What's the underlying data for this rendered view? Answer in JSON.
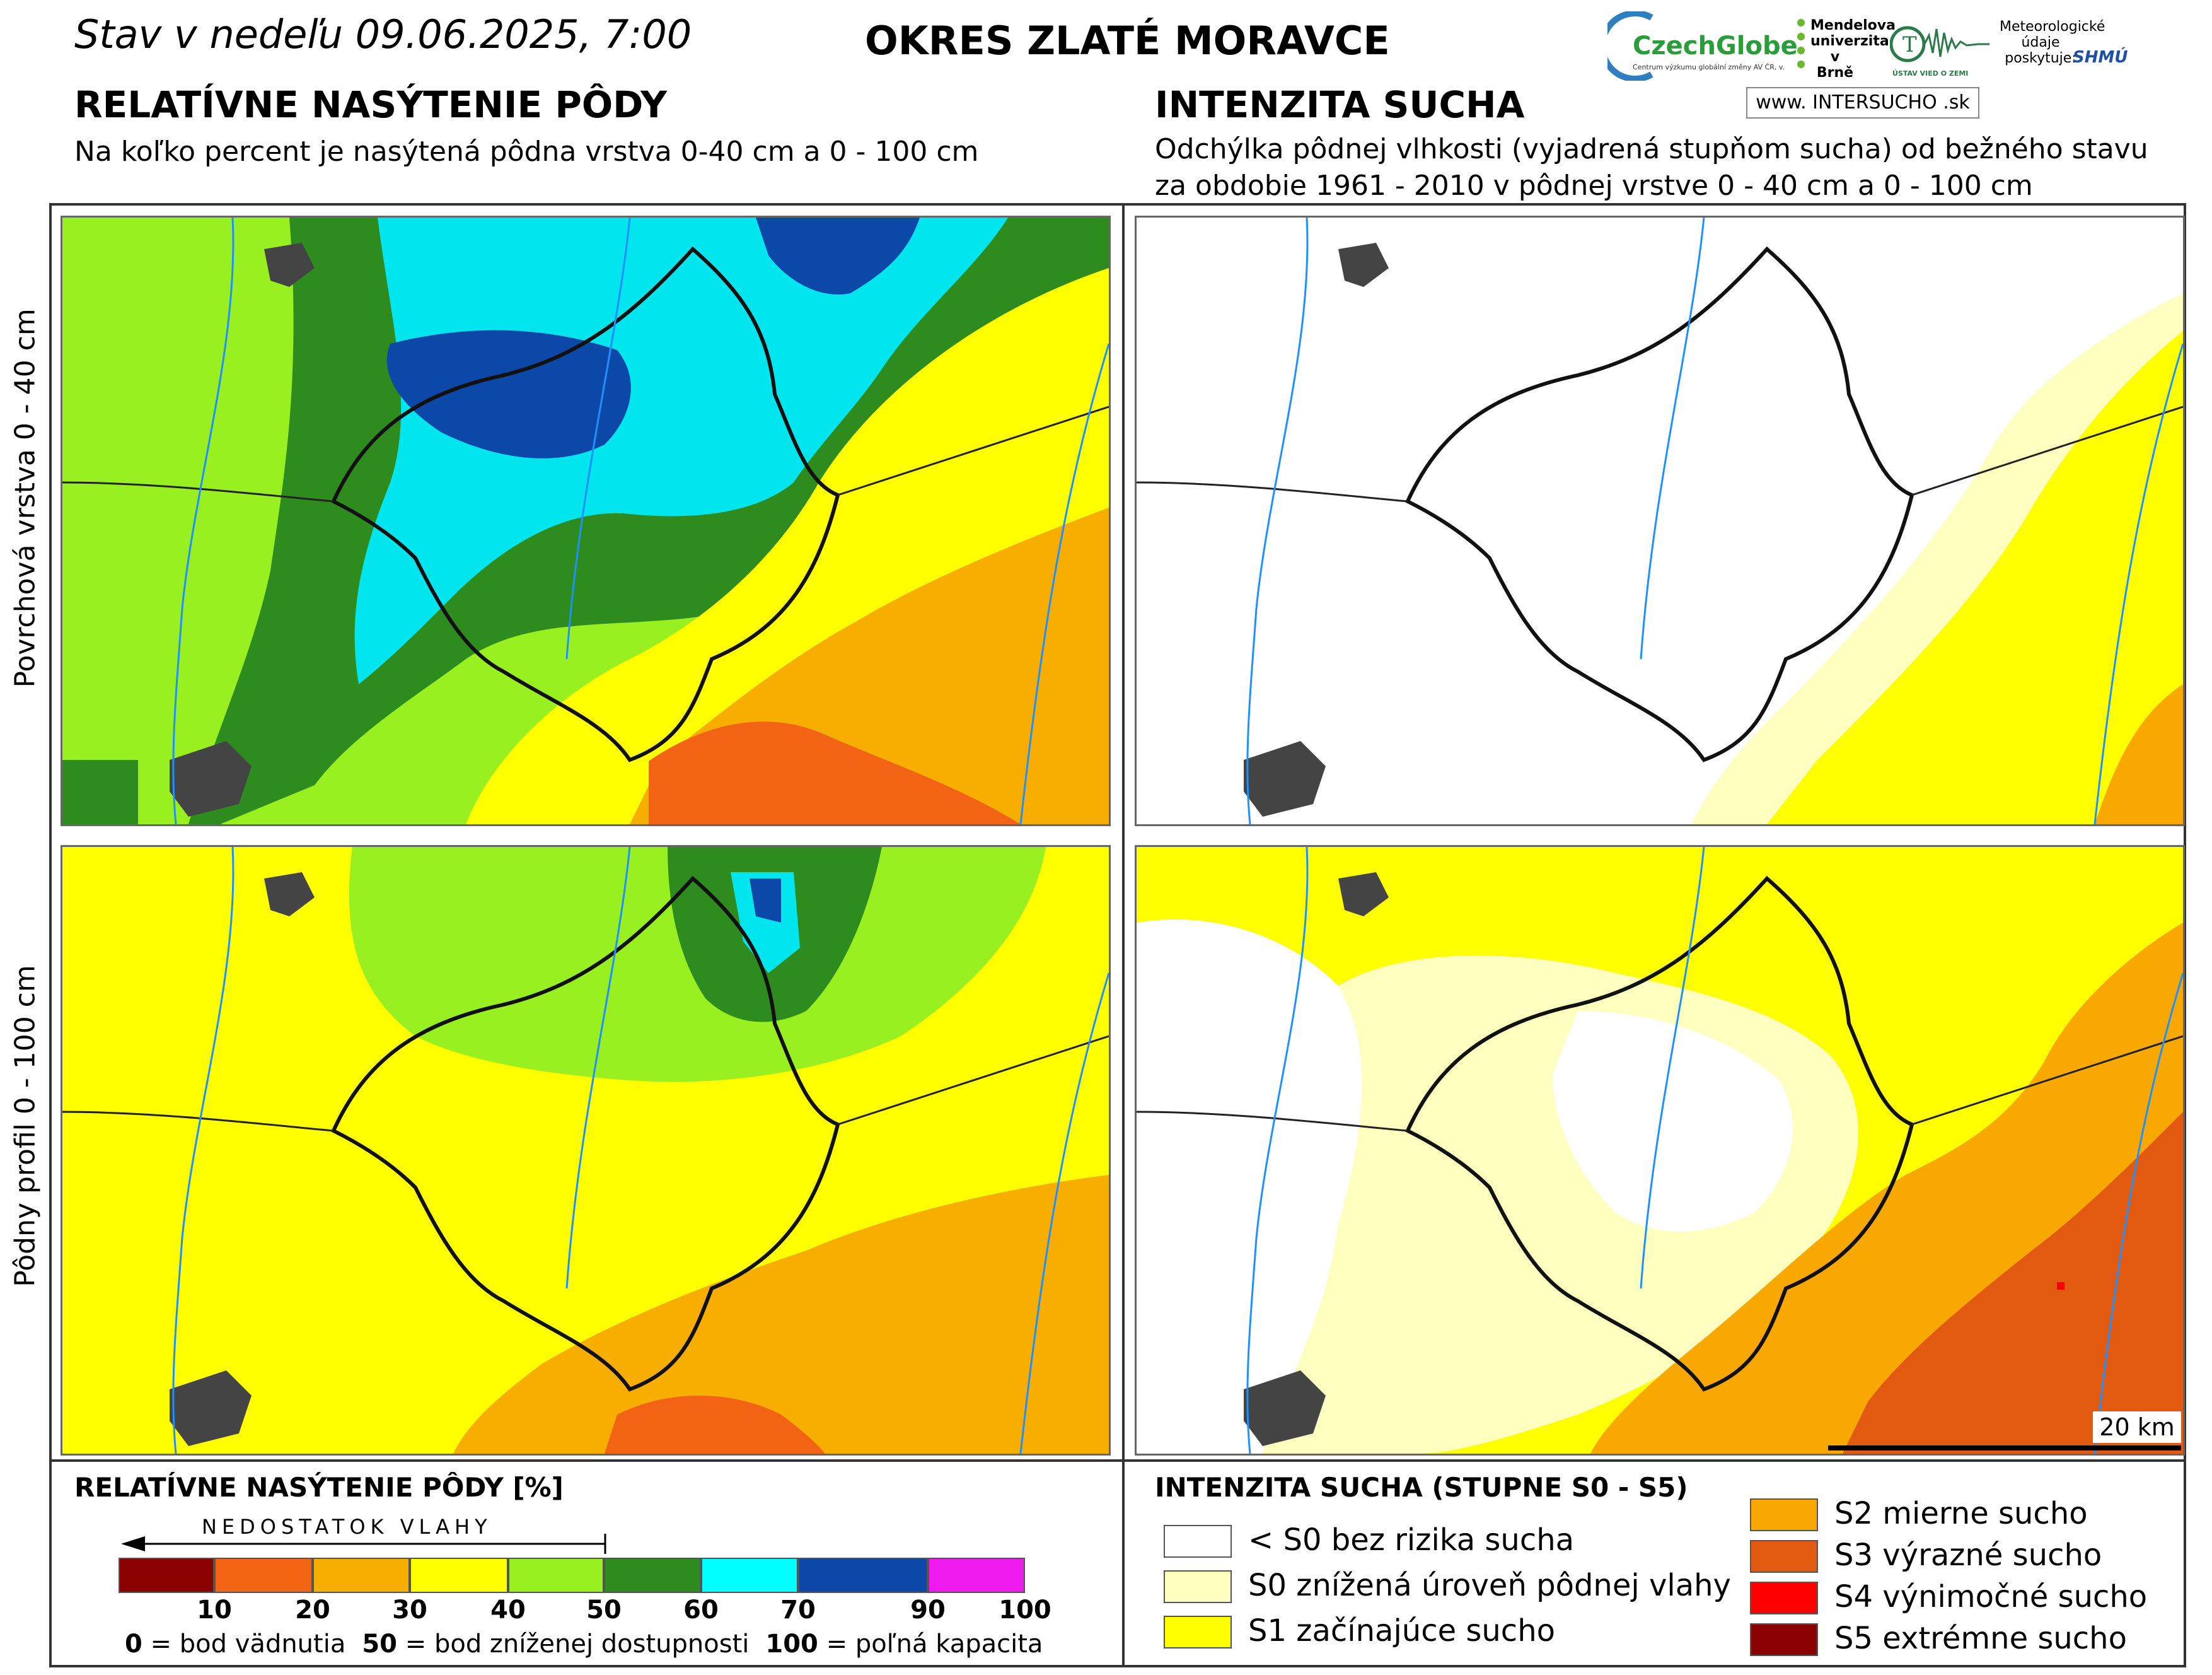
{
  "header": {
    "date_line": "Stav v nedeľu 09.06.2025, 7:00",
    "district": "OKRES  ZLATÉ MORAVCE"
  },
  "left_section": {
    "title": "RELATÍVNE NASÝTENIE PÔDY",
    "subtitle": "Na koľko percent je nasýtená pôdna vrstva 0-40 cm a 0 - 100 cm"
  },
  "right_section": {
    "title": "INTENZITA SUCHA",
    "subtitle_line1": "Odchýlka pôdnej vlhkosti (vyjadrená stupňom sucha) od bežného stavu",
    "subtitle_line2": "za obdobie 1961 - 2010 v pôdnej vrstve 0 - 40 cm a 0 - 100 cm"
  },
  "logos": {
    "czechglobe": "CzechGlobe",
    "czechglobe_tag": "Centrum výzkumu globální změny AV ČR, v. v. i.",
    "mendel": "Mendelova univerzita v Brně",
    "uvz": "ÚSTAV VIED O ZEMI",
    "meteo": "Meteorologické údaje poskytuje:",
    "shmu": "SHMÚ",
    "intersucho": "www. INTERSUCHO .sk"
  },
  "row_labels": {
    "top": "Povrchová vrstva 0 - 40 cm",
    "bottom": "Pôdny profil 0 - 100 cm"
  },
  "scale_bar": {
    "label": "20 km"
  },
  "saturation_legend": {
    "title": "RELATÍVNE NASÝTENIE PÔDY [%]",
    "arrow_label": "NEDOSTATOK VLAHY",
    "colors": [
      "#8b0000",
      "#f26314",
      "#f7ae00",
      "#ffff00",
      "#98f021",
      "#2e8b1e",
      "#00ffff",
      "#0c48a8",
      "#ee1aee"
    ],
    "ticks": [
      "10",
      "20",
      "30",
      "40",
      "50",
      "60",
      "70",
      "90",
      "100"
    ],
    "note_0_value": "0",
    "note_0_text": " = bod vädnutia",
    "note_50_value": "50",
    "note_50_text": " = bod zníženej dostupnosti",
    "note_100_value": "100",
    "note_100_text": " = poľná kapacita"
  },
  "drought_legend": {
    "title": "INTENZITA SUCHA (STUPNE S0 - S5)",
    "items": [
      {
        "label": "< S0 bez rizika sucha",
        "color": "#ffffff"
      },
      {
        "label": "S0 znížená úroveň pôdnej vlahy",
        "color": "#ffffc0"
      },
      {
        "label": "S1 začínajúce sucho",
        "color": "#ffff00"
      },
      {
        "label": "S2 mierne sucho",
        "color": "#f8a800"
      },
      {
        "label": "S3 výrazné sucho",
        "color": "#e25a10"
      },
      {
        "label": "S4 výnimočné sucho",
        "color": "#ff0000"
      },
      {
        "label": "S5 extrémne sucho",
        "color": "#8b0000"
      }
    ]
  }
}
